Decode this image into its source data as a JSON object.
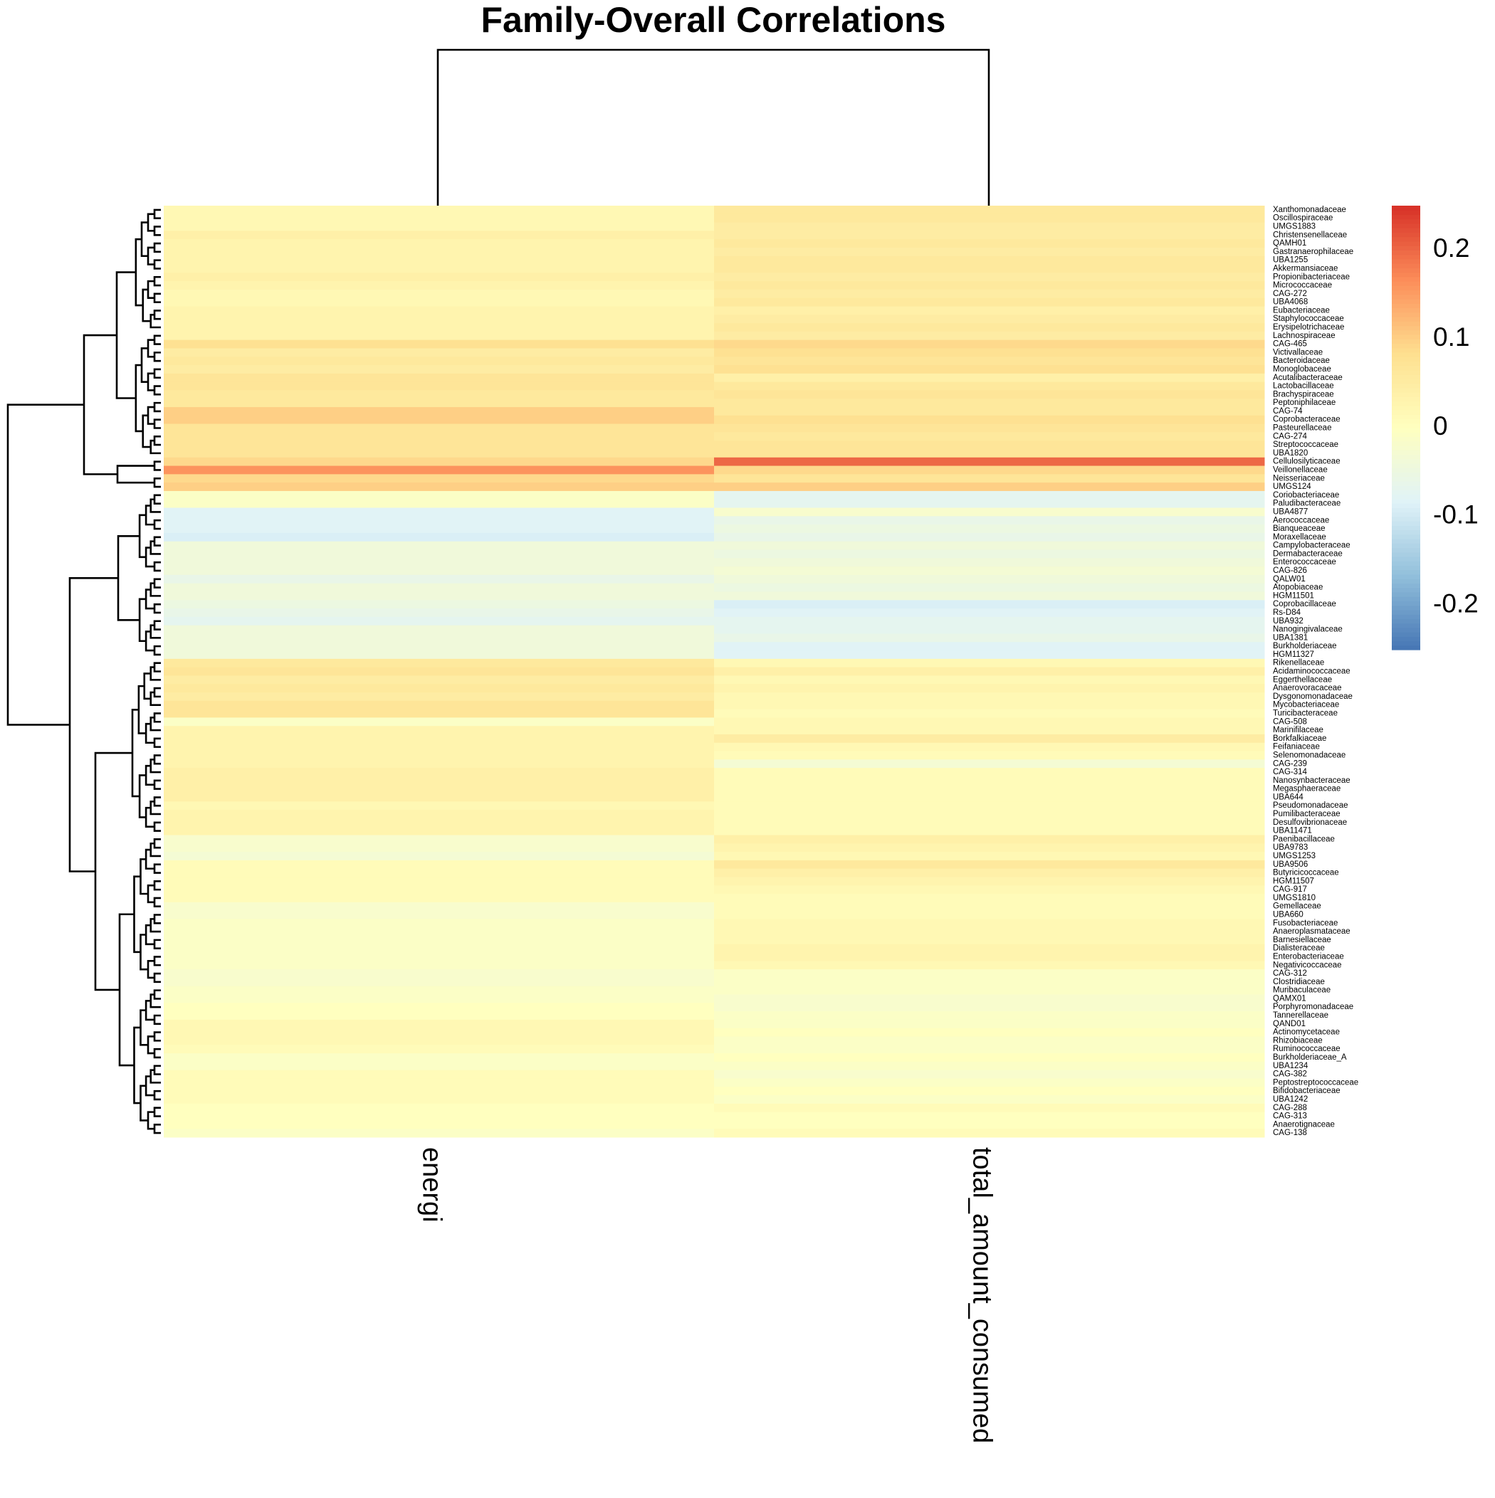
{
  "chart_data": {
    "type": "heatmap",
    "title": "Family-Overall Correlations",
    "columns": [
      "energi",
      "total_amount_consumed"
    ],
    "rows": [
      "Xanthomonadaceae",
      "Oscillospiraceae",
      "UMGS1883",
      "Christensenellaceae",
      "QAMH01",
      "Gastranaerophilaceae",
      "UBA1255",
      "Akkermansiaceae",
      "Propionibacteriaceae",
      "Micrococcaceae",
      "CAG-272",
      "UBA4068",
      "Eubacteriaceae",
      "Staphylococcaceae",
      "Erysipelotrichaceae",
      "Lachnospiraceae",
      "CAG-465",
      "Victivallaceae",
      "Bacteroidaceae",
      "Monoglobaceae",
      "Acutalibacteraceae",
      "Lactobacillaceae",
      "Brachyspiraceae",
      "Peptoniphilaceae",
      "CAG-74",
      "Coprobacteraceae",
      "Pasteurellaceae",
      "CAG-274",
      "Streptococcaceae",
      "UBA1820",
      "Cellulosilyticaceae",
      "Veillonellaceae",
      "Neisseriaceae",
      "UMGS124",
      "Coriobacteriaceae",
      "Paludibacteraceae",
      "UBA4877",
      "Aerococcaceae",
      "Bianqueaceae",
      "Moraxellaceae",
      "Campylobacteraceae",
      "Dermabacteraceae",
      "Enterococcaceae",
      "CAG-826",
      "QALW01",
      "Atopobiaceae",
      "HGM11501",
      "Coprobacillaceae",
      "Rs-D84",
      "UBA932",
      "Nanogingivalaceae",
      "UBA1381",
      "Burkholderiaceae",
      "HGM11327",
      "Rikenellaceae",
      "Acidaminococcaceae",
      "Eggerthellaceae",
      "Anaerovoracaceae",
      "Dysgonomonadaceae",
      "Mycobacteriaceae",
      "Turicibacteraceae",
      "CAG-508",
      "Marinifilaceae",
      "Borkfalkiaceae",
      "Feifaniaceae",
      "Selenomonadaceae",
      "CAG-239",
      "CAG-314",
      "Nanosynbacteraceae",
      "Megasphaeraceae",
      "UBA644",
      "Pseudomonadaceae",
      "Pumilibacteraceae",
      "Desulfovibrionaceae",
      "UBA11471",
      "Paenibacillaceae",
      "UBA9783",
      "UMGS1253",
      "UBA9506",
      "Butyricicoccaceae",
      "HGM11507",
      "CAG-917",
      "UMGS1810",
      "Gemellaceae",
      "UBA660",
      "Fusobacteriaceae",
      "Anaeroplasmataceae",
      "Barnesiellaceae",
      "Dialisteraceae",
      "Enterobacteriaceae",
      "Negativicoccaceae",
      "CAG-312",
      "Clostridiaceae",
      "Muribaculaceae",
      "QAMX01",
      "Porphyromonadaceae",
      "Tannerellaceae",
      "QAND01",
      "Actinomycetaceae",
      "Rhizobiaceae",
      "Ruminococcaceae",
      "Burkholderiaceae_A",
      "UBA1234",
      "CAG-382",
      "Peptostreptococcaceae",
      "Bifidobacteriaceae",
      "UBA1242",
      "CAG-288",
      "CAG-313",
      "Anaerotignaceae",
      "CAG-138"
    ],
    "values": [
      [
        0.02,
        0.06
      ],
      [
        0.02,
        0.06
      ],
      [
        0.02,
        0.05
      ],
      [
        0.04,
        0.05
      ],
      [
        0.03,
        0.06
      ],
      [
        0.03,
        0.05
      ],
      [
        0.03,
        0.06
      ],
      [
        0.03,
        0.06
      ],
      [
        0.04,
        0.05
      ],
      [
        0.03,
        0.06
      ],
      [
        0.02,
        0.05
      ],
      [
        0.02,
        0.06
      ],
      [
        0.03,
        0.04
      ],
      [
        0.03,
        0.05
      ],
      [
        0.03,
        0.06
      ],
      [
        0.03,
        0.05
      ],
      [
        0.08,
        0.09
      ],
      [
        0.05,
        0.08
      ],
      [
        0.06,
        0.07
      ],
      [
        0.05,
        0.08
      ],
      [
        0.07,
        0.04
      ],
      [
        0.07,
        0.06
      ],
      [
        0.06,
        0.07
      ],
      [
        0.06,
        0.06
      ],
      [
        0.1,
        0.06
      ],
      [
        0.1,
        0.08
      ],
      [
        0.07,
        0.07
      ],
      [
        0.07,
        0.06
      ],
      [
        0.07,
        0.07
      ],
      [
        0.07,
        0.07
      ],
      [
        0.09,
        0.2
      ],
      [
        0.16,
        0.09
      ],
      [
        0.09,
        0.07
      ],
      [
        0.1,
        0.1
      ],
      [
        -0.01,
        -0.07
      ],
      [
        -0.01,
        -0.07
      ],
      [
        -0.08,
        -0.02
      ],
      [
        -0.08,
        -0.06
      ],
      [
        -0.08,
        -0.05
      ],
      [
        -0.09,
        -0.06
      ],
      [
        -0.04,
        -0.04
      ],
      [
        -0.04,
        -0.05
      ],
      [
        -0.04,
        -0.04
      ],
      [
        -0.04,
        -0.03
      ],
      [
        -0.06,
        -0.04
      ],
      [
        -0.04,
        -0.05
      ],
      [
        -0.04,
        -0.04
      ],
      [
        -0.05,
        -0.09
      ],
      [
        -0.06,
        -0.08
      ],
      [
        -0.07,
        -0.07
      ],
      [
        -0.04,
        -0.07
      ],
      [
        -0.04,
        -0.06
      ],
      [
        -0.04,
        -0.08
      ],
      [
        -0.04,
        -0.08
      ],
      [
        0.06,
        0.02
      ],
      [
        0.07,
        0.04
      ],
      [
        0.05,
        0.02
      ],
      [
        0.06,
        0.03
      ],
      [
        0.05,
        0.02
      ],
      [
        0.07,
        0.02
      ],
      [
        0.07,
        0.01
      ],
      [
        -0.01,
        0.02
      ],
      [
        0.03,
        0.02
      ],
      [
        0.03,
        0.05
      ],
      [
        0.03,
        0.02
      ],
      [
        0.03,
        0.01
      ],
      [
        0.03,
        -0.03
      ],
      [
        0.04,
        0.01
      ],
      [
        0.04,
        0.01
      ],
      [
        0.04,
        0.01
      ],
      [
        0.04,
        0.01
      ],
      [
        0.02,
        0.01
      ],
      [
        0.03,
        0.01
      ],
      [
        0.03,
        0.01
      ],
      [
        0.03,
        0.01
      ],
      [
        -0.02,
        0.04
      ],
      [
        -0.02,
        0.03
      ],
      [
        -0.03,
        0.02
      ],
      [
        0.01,
        0.06
      ],
      [
        0.01,
        0.04
      ],
      [
        0.01,
        0.03
      ],
      [
        0.01,
        0.02
      ],
      [
        0.01,
        0.01
      ],
      [
        -0.02,
        0.01
      ],
      [
        -0.02,
        0.01
      ],
      [
        -0.01,
        0.02
      ],
      [
        -0.01,
        0.02
      ],
      [
        -0.01,
        0.02
      ],
      [
        -0.01,
        0.03
      ],
      [
        -0.01,
        0.03
      ],
      [
        -0.01,
        0.02
      ],
      [
        -0.02,
        -0.01
      ],
      [
        -0.02,
        -0.01
      ],
      [
        -0.01,
        -0.01
      ],
      [
        -0.01,
        -0.02
      ],
      [
        0,
        -0.02
      ],
      [
        0,
        -0.01
      ],
      [
        0.02,
        -0.01
      ],
      [
        0.02,
        0
      ],
      [
        0.02,
        -0.01
      ],
      [
        0.01,
        -0.01
      ],
      [
        -0.01,
        0
      ],
      [
        -0.01,
        -0.01
      ],
      [
        0.01,
        -0.02
      ],
      [
        0.01,
        -0.01
      ],
      [
        0.01,
        0
      ],
      [
        0.01,
        -0.01
      ],
      [
        0,
        0.01
      ],
      [
        0,
        0
      ],
      [
        0,
        0
      ],
      [
        -0.01,
        0.01
      ]
    ],
    "colorbar": {
      "lim": [
        -0.25,
        0.25
      ],
      "ticks": [
        0.2,
        0.1,
        0,
        -0.1,
        -0.2
      ],
      "colors": [
        "#4575B4",
        "#91BFDB",
        "#E0F3F8",
        "#FFFFBF",
        "#FEE090",
        "#FC8D59",
        "#D73027"
      ]
    }
  }
}
